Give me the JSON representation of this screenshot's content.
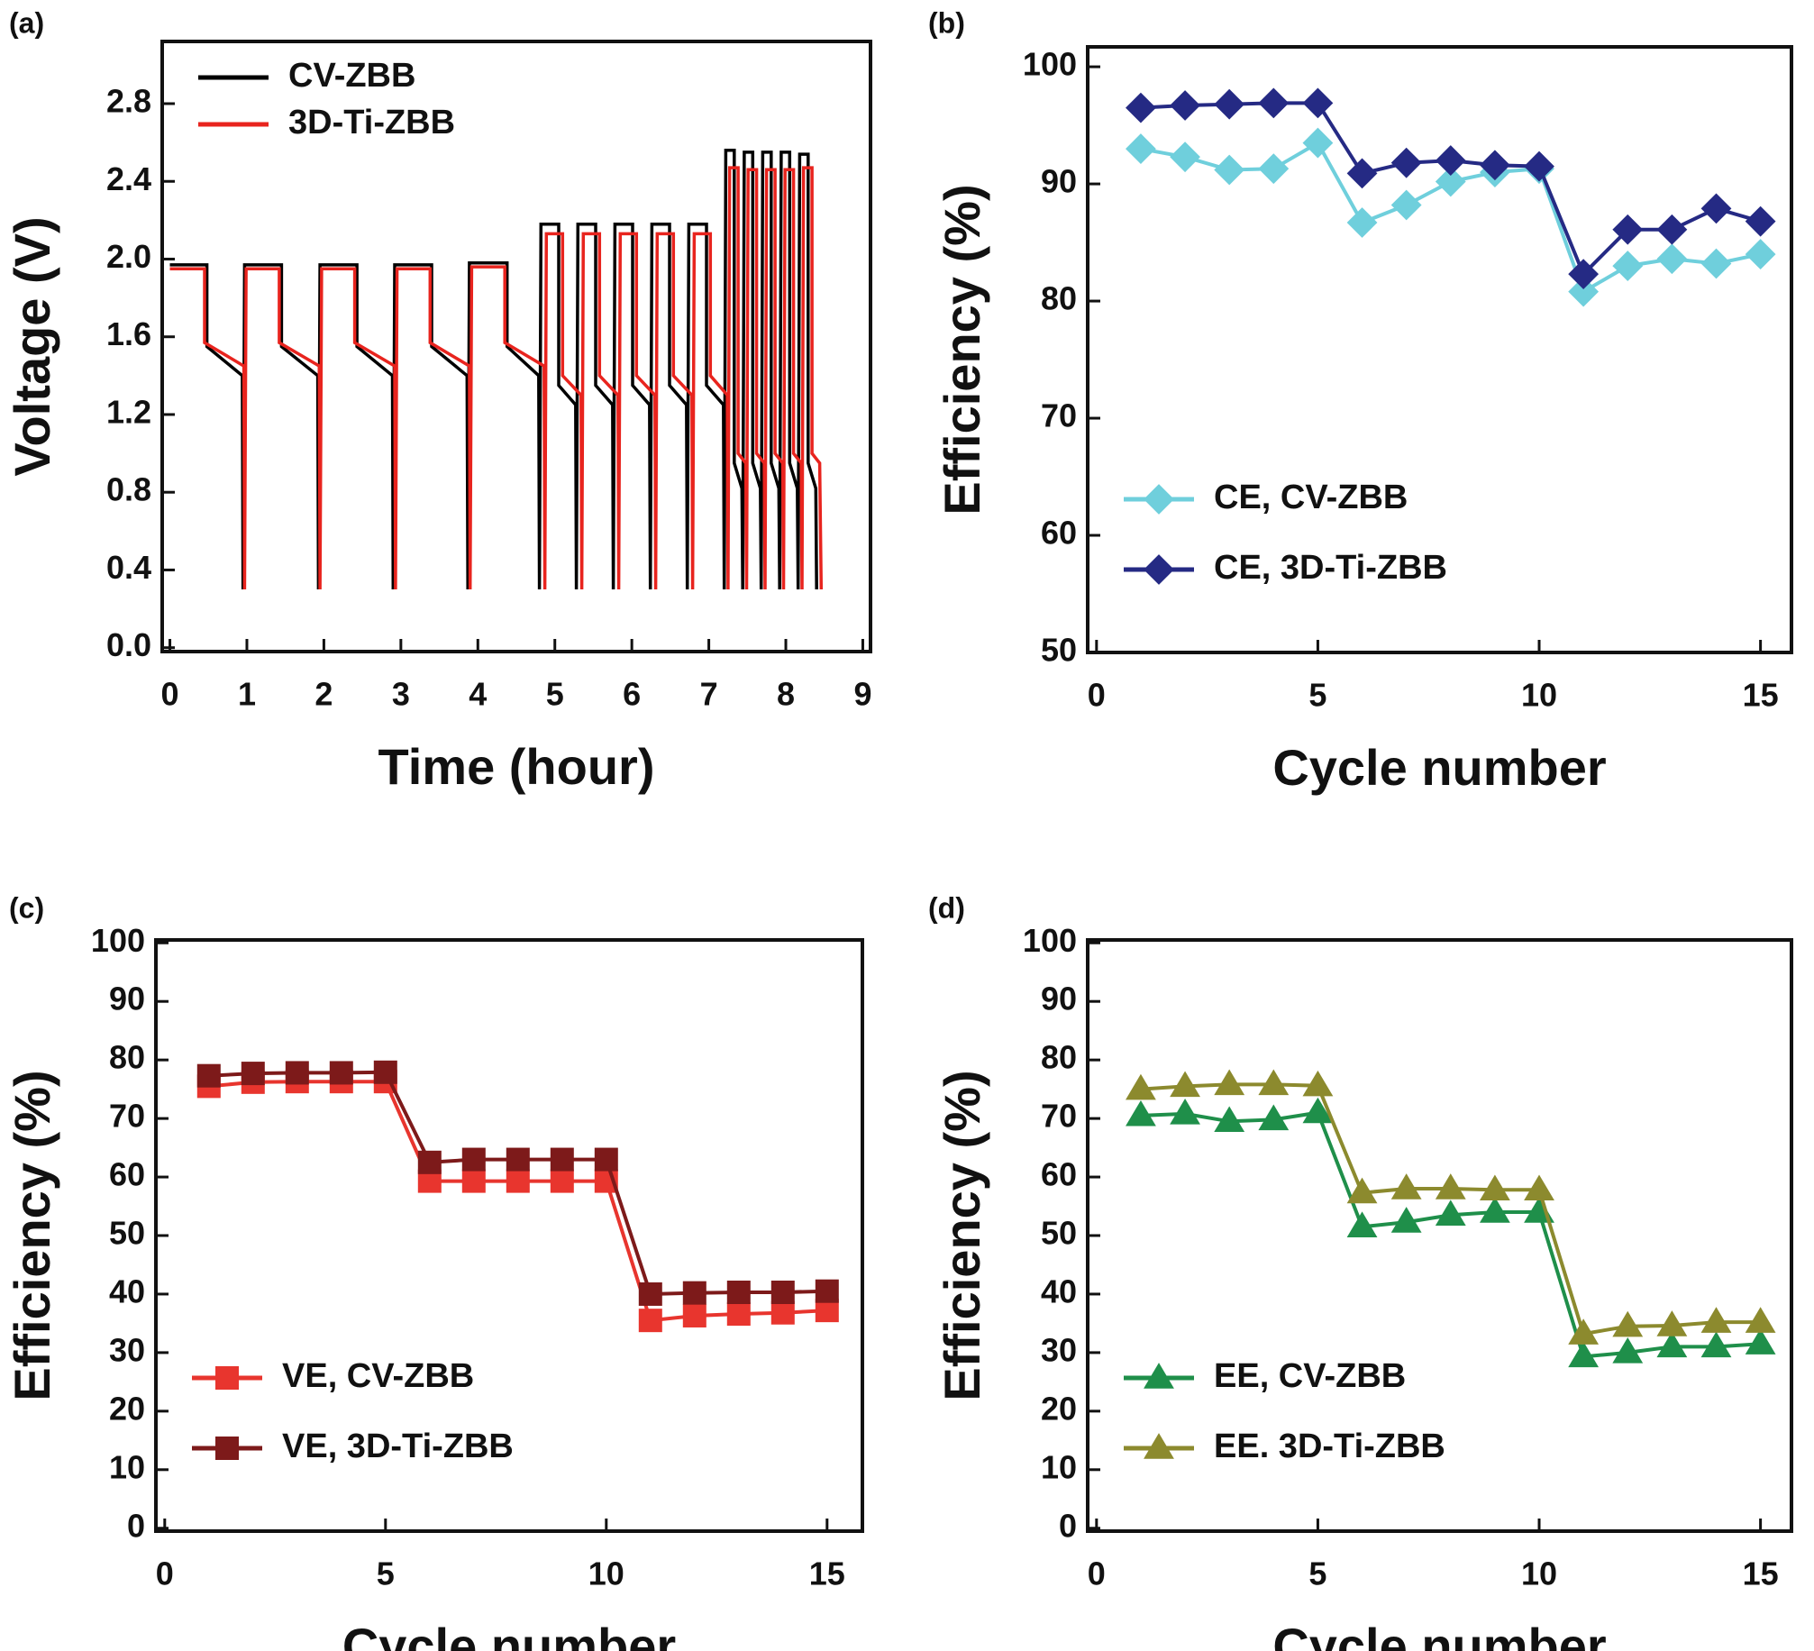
{
  "chart_data": [
    {
      "type": "line",
      "panel_label": "(a)",
      "xlabel": "Time (hour)",
      "ylabel": "Voltage (V)",
      "xlim": [
        -0.1,
        9.1
      ],
      "ylim": [
        -0.02,
        3.12
      ],
      "xticks": [
        0,
        1,
        2,
        3,
        4,
        5,
        6,
        7,
        8,
        9
      ],
      "yticks": [
        {
          "value": 0,
          "label": "0.0"
        },
        0.4,
        0.8,
        1.2,
        1.6,
        {
          "value": 2,
          "label": "2.0"
        },
        2.4,
        2.8
      ],
      "legend": "upper left",
      "series": [
        {
          "name": "CV-ZBB",
          "color": "#000000",
          "x": [
            0,
            0.48,
            0.48,
            0.94,
            0.95,
            0.97,
            1.45,
            1.45,
            1.92,
            1.93,
            1.95,
            2.43,
            2.43,
            2.89,
            2.9,
            2.92,
            3.4,
            3.4,
            3.86,
            3.87,
            3.89,
            4.38,
            4.38,
            4.79,
            4.8,
            4.82,
            5.05,
            5.05,
            5.27,
            5.28,
            5.3,
            5.53,
            5.53,
            5.75,
            5.76,
            5.78,
            6.01,
            6.01,
            6.23,
            6.24,
            6.26,
            6.49,
            6.49,
            6.71,
            6.72,
            6.74,
            6.97,
            6.97,
            7.19,
            7.2,
            7.22,
            7.33,
            7.33,
            7.43,
            7.44,
            7.46,
            7.57,
            7.57,
            7.67,
            7.68,
            7.7,
            7.81,
            7.81,
            7.91,
            7.92,
            7.94,
            8.05,
            8.05,
            8.15,
            8.16,
            8.18,
            8.29,
            8.29,
            8.39,
            8.4
          ],
          "values": [
            1.97,
            1.97,
            1.55,
            1.4,
            0.3,
            1.97,
            1.97,
            1.55,
            1.4,
            0.3,
            1.97,
            1.97,
            1.55,
            1.4,
            0.3,
            1.97,
            1.97,
            1.55,
            1.4,
            0.3,
            1.98,
            1.98,
            1.55,
            1.4,
            0.3,
            2.18,
            2.18,
            1.35,
            1.25,
            0.3,
            2.18,
            2.18,
            1.35,
            1.25,
            0.3,
            2.18,
            2.18,
            1.35,
            1.25,
            0.3,
            2.18,
            2.18,
            1.35,
            1.25,
            0.3,
            2.18,
            2.18,
            1.35,
            1.25,
            0.3,
            2.56,
            2.56,
            0.95,
            0.82,
            0.3,
            2.55,
            2.55,
            0.95,
            0.82,
            0.3,
            2.55,
            2.55,
            0.95,
            0.82,
            0.3,
            2.55,
            2.55,
            0.95,
            0.82,
            0.3,
            2.54,
            2.54,
            0.95,
            0.82,
            0.3
          ]
        },
        {
          "name": "3D-Ti-ZBB",
          "color": "#e8241e",
          "x": [
            0,
            0.45,
            0.45,
            0.96,
            0.97,
            0.99,
            1.42,
            1.42,
            1.94,
            1.95,
            1.97,
            2.4,
            2.4,
            2.92,
            2.93,
            2.95,
            3.38,
            3.38,
            3.89,
            3.9,
            3.92,
            4.35,
            4.35,
            4.86,
            4.87,
            4.89,
            5.1,
            5.1,
            5.34,
            5.35,
            5.37,
            5.58,
            5.58,
            5.82,
            5.83,
            5.85,
            6.06,
            6.06,
            6.3,
            6.31,
            6.33,
            6.54,
            6.54,
            6.78,
            6.79,
            6.81,
            7.02,
            7.02,
            7.24,
            7.25,
            7.27,
            7.38,
            7.38,
            7.48,
            7.49,
            7.51,
            7.62,
            7.62,
            7.72,
            7.73,
            7.75,
            7.86,
            7.86,
            7.96,
            7.97,
            7.99,
            8.1,
            8.1,
            8.2,
            8.21,
            8.23,
            8.34,
            8.34,
            8.44,
            8.46
          ],
          "values": [
            1.95,
            1.95,
            1.57,
            1.45,
            0.3,
            1.95,
            1.95,
            1.57,
            1.45,
            0.3,
            1.95,
            1.95,
            1.57,
            1.45,
            0.3,
            1.95,
            1.95,
            1.57,
            1.45,
            0.3,
            1.96,
            1.96,
            1.57,
            1.45,
            0.3,
            2.13,
            2.13,
            1.4,
            1.3,
            0.3,
            2.13,
            2.13,
            1.4,
            1.3,
            0.3,
            2.13,
            2.13,
            1.4,
            1.3,
            0.3,
            2.13,
            2.13,
            1.4,
            1.3,
            0.3,
            2.13,
            2.13,
            1.4,
            1.3,
            0.3,
            2.47,
            2.47,
            1.0,
            0.95,
            0.3,
            2.46,
            2.46,
            1.0,
            0.95,
            0.3,
            2.46,
            2.46,
            1.0,
            0.95,
            0.3,
            2.46,
            2.46,
            1.0,
            0.95,
            0.3,
            2.47,
            2.47,
            1.0,
            0.95,
            0.3
          ]
        }
      ]
    },
    {
      "type": "line",
      "panel_label": "(b)",
      "xlabel": "Cycle number",
      "ylabel": "Efficiency (%)",
      "xlim": [
        -0.2,
        15.7
      ],
      "ylim": [
        50,
        101.7
      ],
      "xticks": [
        0,
        5,
        10,
        15
      ],
      "yticks": [
        50,
        60,
        70,
        80,
        90,
        100
      ],
      "legend": "lower left",
      "x": [
        1,
        2,
        3,
        4,
        5,
        6,
        7,
        8,
        9,
        10,
        11,
        12,
        13,
        14,
        15
      ],
      "series": [
        {
          "name": "CE, CV-ZBB",
          "color": "#6fcfdc",
          "marker": "diamond",
          "values": [
            93,
            92.3,
            91.2,
            91.3,
            93.5,
            86.7,
            88.2,
            90.2,
            91,
            91.3,
            80.8,
            83,
            83.6,
            83.2,
            84
          ]
        },
        {
          "name": "CE, 3D-Ti-ZBB",
          "color": "#252a84",
          "marker": "diamond",
          "values": [
            96.5,
            96.7,
            96.8,
            96.9,
            96.9,
            90.9,
            91.8,
            92,
            91.6,
            91.5,
            82.3,
            86.1,
            86.1,
            87.9,
            86.8
          ]
        }
      ]
    },
    {
      "type": "line",
      "panel_label": "(c)",
      "xlabel": "Cycle number",
      "ylabel": "Efficiency (%)",
      "xlim": [
        -0.2,
        15.8
      ],
      "ylim": [
        -0.5,
        100.5
      ],
      "xticks": [
        0,
        5,
        10,
        15
      ],
      "yticks": [
        0,
        10,
        20,
        30,
        40,
        50,
        60,
        70,
        80,
        90,
        100
      ],
      "legend": "lower left",
      "x": [
        1,
        2,
        3,
        4,
        5,
        6,
        7,
        8,
        9,
        10,
        11,
        12,
        13,
        14,
        15
      ],
      "series": [
        {
          "name": "VE, CV-ZBB",
          "color": "#e8352e",
          "marker": "square",
          "values": [
            75.5,
            76.2,
            76.3,
            76.3,
            76.3,
            59.3,
            59.3,
            59.3,
            59.3,
            59.3,
            35.5,
            36.3,
            36.6,
            36.8,
            37.2
          ]
        },
        {
          "name": "VE, 3D-Ti-ZBB",
          "color": "#7d1a1a",
          "marker": "square",
          "values": [
            77.3,
            77.7,
            77.8,
            77.8,
            77.9,
            62.5,
            63,
            63,
            63,
            63,
            40,
            40.2,
            40.3,
            40.3,
            40.5
          ]
        }
      ]
    },
    {
      "type": "line",
      "panel_label": "(d)",
      "xlabel": "Cycle number",
      "ylabel": "Efficiency (%)",
      "xlim": [
        -0.2,
        15.7
      ],
      "ylim": [
        -0.5,
        100.5
      ],
      "xticks": [
        0,
        5,
        10,
        15
      ],
      "yticks": [
        0,
        10,
        20,
        30,
        40,
        50,
        60,
        70,
        80,
        90,
        100
      ],
      "legend": "lower left",
      "x": [
        1,
        2,
        3,
        4,
        5,
        6,
        7,
        8,
        9,
        10,
        11,
        12,
        13,
        14,
        15
      ],
      "series": [
        {
          "name": "EE, CV-ZBB",
          "color": "#1f8f4a",
          "marker": "triangle",
          "values": [
            70.5,
            70.8,
            69.5,
            69.8,
            71,
            51.5,
            52.3,
            53.5,
            54,
            54,
            29.3,
            30,
            31,
            31,
            31.5
          ]
        },
        {
          "name": "EE. 3D-Ti-ZBB",
          "color": "#8c8a2e",
          "marker": "triangle",
          "values": [
            75,
            75.5,
            75.8,
            75.8,
            75.6,
            57.3,
            58,
            58,
            57.8,
            57.8,
            33.2,
            34.5,
            34.6,
            35.2,
            35.2
          ]
        }
      ]
    }
  ]
}
